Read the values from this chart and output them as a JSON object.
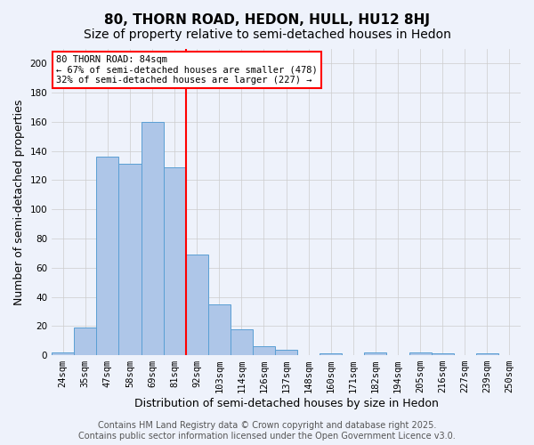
{
  "title": "80, THORN ROAD, HEDON, HULL, HU12 8HJ",
  "subtitle": "Size of property relative to semi-detached houses in Hedon",
  "xlabel": "Distribution of semi-detached houses by size in Hedon",
  "ylabel": "Number of semi-detached properties",
  "categories": [
    "24sqm",
    "35sqm",
    "47sqm",
    "58sqm",
    "69sqm",
    "81sqm",
    "92sqm",
    "103sqm",
    "114sqm",
    "126sqm",
    "137sqm",
    "148sqm",
    "160sqm",
    "171sqm",
    "182sqm",
    "194sqm",
    "205sqm",
    "216sqm",
    "227sqm",
    "239sqm",
    "250sqm"
  ],
  "values": [
    2,
    19,
    136,
    131,
    160,
    129,
    69,
    35,
    18,
    6,
    4,
    0,
    1,
    0,
    2,
    0,
    2,
    1,
    0,
    1,
    0
  ],
  "bar_color": "#aec6e8",
  "bar_edge_color": "#5a9fd4",
  "property_label": "80 THORN ROAD: 84sqm",
  "annotation_line1": "← 67% of semi-detached houses are smaller (478)",
  "annotation_line2": "32% of semi-detached houses are larger (227) →",
  "vline_color": "red",
  "vline_bin_index": 5,
  "box_color": "red",
  "background_color": "#eef2fb",
  "grid_color": "#cccccc",
  "ylim": [
    0,
    210
  ],
  "yticks": [
    0,
    20,
    40,
    60,
    80,
    100,
    120,
    140,
    160,
    180,
    200
  ],
  "footer": "Contains HM Land Registry data © Crown copyright and database right 2025.\nContains public sector information licensed under the Open Government Licence v3.0.",
  "title_fontsize": 11,
  "subtitle_fontsize": 10,
  "axis_label_fontsize": 9,
  "tick_fontsize": 7.5,
  "footer_fontsize": 7
}
